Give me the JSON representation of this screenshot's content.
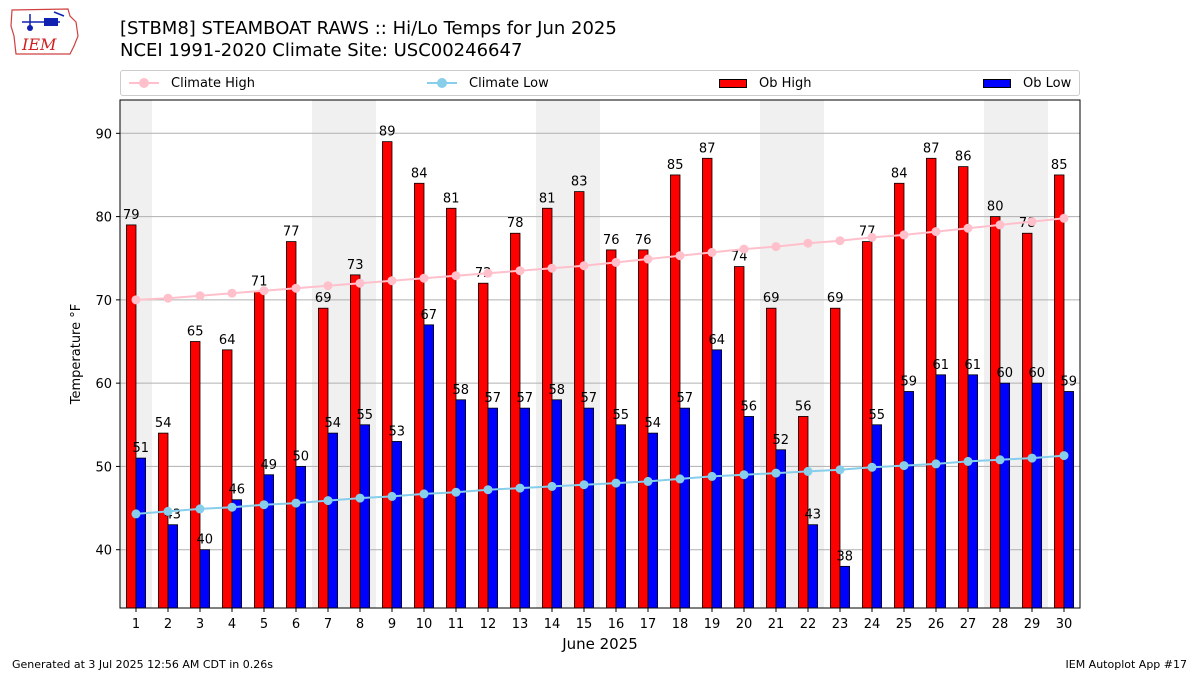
{
  "header": {
    "title_line1": "[STBM8] STEAMBOAT RAWS :: Hi/Lo Temps for Jun 2025",
    "title_line2": "NCEI 1991-2020 Climate Site: USC00246647",
    "logo_text": "IEM"
  },
  "footer": {
    "generated": "Generated at 3 Jul 2025 12:56 AM CDT in 0.26s",
    "app": "IEM Autoplot App #17"
  },
  "colors": {
    "ob_high": "#ff0000",
    "ob_low": "#0000ff",
    "climate_high": "#ffc0cb",
    "climate_low": "#87ceeb",
    "weekend_band": "#f0f0f0",
    "grid": "#b0b0b0"
  },
  "chart_data": {
    "type": "bar",
    "xlabel": "June 2025",
    "ylabel": "Temperature °F",
    "ylim": [
      33,
      94
    ],
    "yticks": [
      40,
      50,
      60,
      70,
      80,
      90
    ],
    "grid": "horizontal",
    "legend_position": "top",
    "categories": [
      "1",
      "2",
      "3",
      "4",
      "5",
      "6",
      "7",
      "8",
      "9",
      "10",
      "11",
      "12",
      "13",
      "14",
      "15",
      "16",
      "17",
      "18",
      "19",
      "20",
      "21",
      "22",
      "23",
      "24",
      "25",
      "26",
      "27",
      "28",
      "29",
      "30"
    ],
    "shaded_day_ranges": [
      [
        1,
        1
      ],
      [
        7,
        8
      ],
      [
        14,
        15
      ],
      [
        21,
        22
      ],
      [
        28,
        29
      ]
    ],
    "series": [
      {
        "name": "Climate High",
        "kind": "line",
        "values": [
          70.0,
          70.2,
          70.5,
          70.8,
          71.1,
          71.4,
          71.7,
          72.0,
          72.3,
          72.6,
          72.9,
          73.2,
          73.5,
          73.8,
          74.1,
          74.5,
          74.9,
          75.3,
          75.7,
          76.1,
          76.4,
          76.8,
          77.1,
          77.5,
          77.8,
          78.2,
          78.6,
          79.0,
          79.4,
          79.8
        ]
      },
      {
        "name": "Climate Low",
        "kind": "line",
        "values": [
          44.3,
          44.6,
          44.9,
          45.1,
          45.4,
          45.6,
          45.9,
          46.2,
          46.4,
          46.7,
          46.9,
          47.2,
          47.4,
          47.6,
          47.8,
          48.0,
          48.2,
          48.5,
          48.8,
          49.0,
          49.2,
          49.4,
          49.6,
          49.9,
          50.1,
          50.3,
          50.6,
          50.8,
          51.0,
          51.3
        ]
      },
      {
        "name": "Ob High",
        "kind": "bar",
        "values": [
          79,
          54,
          65,
          64,
          71,
          77,
          69,
          73,
          89,
          84,
          81,
          72,
          78,
          81,
          83,
          76,
          76,
          85,
          87,
          74,
          69,
          56,
          69,
          77,
          84,
          87,
          86,
          80,
          78,
          85
        ]
      },
      {
        "name": "Ob Low",
        "kind": "bar",
        "values": [
          51,
          43,
          40,
          46,
          49,
          50,
          54,
          55,
          53,
          67,
          58,
          57,
          57,
          58,
          57,
          55,
          54,
          57,
          64,
          56,
          52,
          43,
          38,
          55,
          59,
          61,
          61,
          60,
          60,
          59
        ]
      }
    ]
  }
}
